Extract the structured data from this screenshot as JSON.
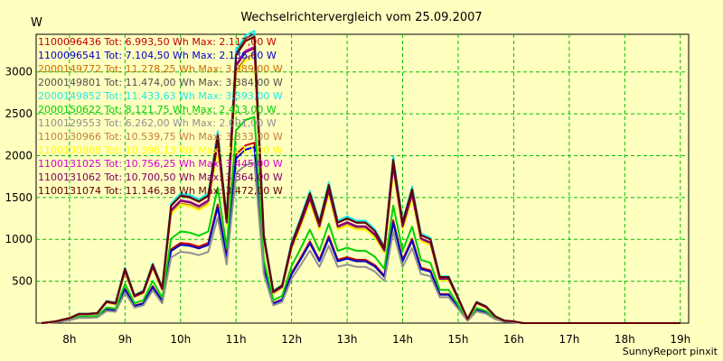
{
  "chart_data": {
    "type": "line",
    "title": "Wechselrichtervergleich vom 25.09.2007",
    "ylabel": "W",
    "footer": "SunnyReport pinxit",
    "x_ticks": [
      "8h",
      "9h",
      "10h",
      "11h",
      "12h",
      "13h",
      "14h",
      "15h",
      "16h",
      "17h",
      "18h",
      "19h"
    ],
    "x_tick_hours": [
      8,
      9,
      10,
      11,
      12,
      13,
      14,
      15,
      16,
      17,
      18,
      19
    ],
    "y_ticks": [
      500,
      1000,
      1500,
      2000,
      2500,
      3000
    ],
    "xlim": [
      7.4,
      19.15
    ],
    "ylim": [
      0,
      3450
    ],
    "grid": true,
    "legend_position": "top-left",
    "time_hours": [
      7.5,
      7.75,
      8.0,
      8.17,
      8.33,
      8.5,
      8.67,
      8.83,
      9.0,
      9.17,
      9.33,
      9.5,
      9.67,
      9.83,
      10.0,
      10.17,
      10.33,
      10.5,
      10.67,
      10.83,
      11.0,
      11.17,
      11.33,
      11.5,
      11.67,
      11.83,
      12.0,
      12.17,
      12.33,
      12.5,
      12.67,
      12.83,
      13.0,
      13.17,
      13.33,
      13.5,
      13.67,
      13.83,
      14.0,
      14.17,
      14.33,
      14.5,
      14.67,
      14.83,
      15.0,
      15.17,
      15.33,
      15.5,
      15.67,
      15.83,
      16.0,
      16.17,
      16.33,
      16.5,
      16.67,
      16.83,
      17.0,
      17.17,
      17.33,
      17.5,
      17.67,
      17.83,
      18.0,
      18.17,
      18.33,
      18.5,
      18.67,
      18.83,
      19.0
    ],
    "series": [
      {
        "name": "1100096436 Tot: 6.993,50 Wh Max: 2.117,00 W",
        "color": "#c00000",
        "factor": 0.63
      },
      {
        "name": "1100096541 Tot: 7.104,50 Wh Max: 2.136,00 W",
        "color": "#0000cc",
        "factor": 0.615
      },
      {
        "name": "2000149772 Tot: 11.278,25 Wh Max: 3.389,00 W",
        "color": "#c87000",
        "factor": 1.0
      },
      {
        "name": "2000149801 Tot: 11.474,00 Wh Max: 3.384,00 W",
        "color": "#505050",
        "factor": 1.01
      },
      {
        "name": "2000149852 Tot: 11.433,63 Wh Max: 3.393,00 W",
        "color": "#20e8e8",
        "factor": 1.02
      },
      {
        "name": "2000150622 Tot: 8.121,75 Wh Max: 2.413,00 W",
        "color": "#00d000",
        "factor": 0.72
      },
      {
        "name": "1100129553 Tot: 6.262,00 Wh Max: 2.091,00 W",
        "color": "#909090",
        "factor": 0.56
      },
      {
        "name": "1100130966 Tot: 10.539,75 Wh Max: 3.333,00 W",
        "color": "#c08040",
        "factor": 0.94
      },
      {
        "name": "1100130968 Tot: 10.396,13 Wh Max: 3.217,00 W",
        "color": "#ffff00",
        "factor": 0.93
      },
      {
        "name": "1100131025 Tot: 10.756,25 Wh Max: 3.445,00 W",
        "color": "#d000d0",
        "factor": 0.965
      },
      {
        "name": "1100131062 Tot: 10.700,50 Wh Max: 3.364,00 W",
        "color": "#800060",
        "factor": 0.96
      },
      {
        "name": "1100131074 Tot: 11.146,38 Wh Max: 3.472,00 W",
        "color": "#600000",
        "factor": 1.0
      }
    ],
    "base_profile": [
      0,
      20,
      60,
      110,
      110,
      120,
      260,
      240,
      650,
      330,
      380,
      700,
      420,
      1400,
      1520,
      1500,
      1450,
      1520,
      2250,
      1250,
      3200,
      3370,
      3420,
      1050,
      380,
      450,
      950,
      1250,
      1550,
      1200,
      1650,
      1200,
      1250,
      1200,
      1200,
      1100,
      900,
      1950,
      1200,
      1600,
      1050,
      1000,
      550,
      550,
      300,
      50,
      250,
      200,
      80,
      30,
      20,
      0,
      0,
      0,
      0,
      0,
      0,
      0,
      0,
      0,
      0,
      0,
      0,
      0,
      0,
      0,
      0,
      0,
      0
    ],
    "profile_override_note": ""
  }
}
